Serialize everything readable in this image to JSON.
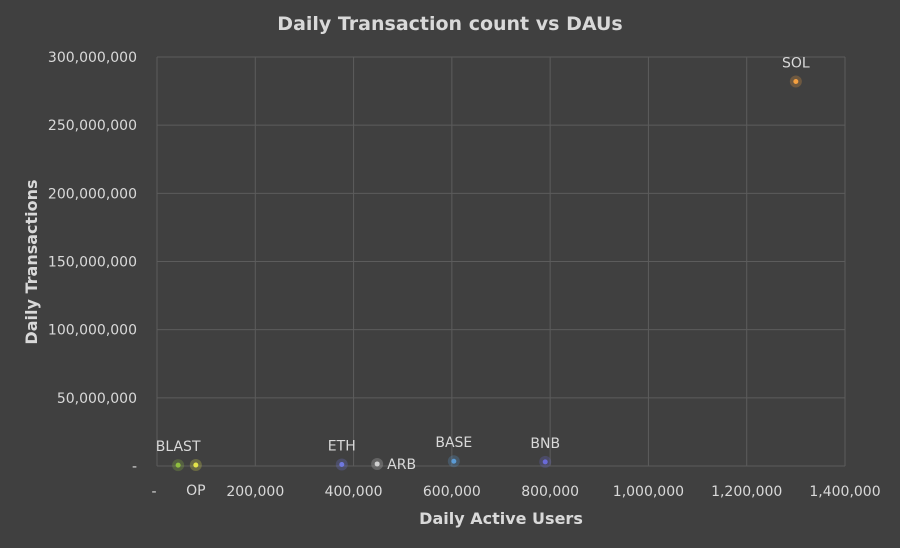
{
  "chart_data": {
    "type": "scatter",
    "title": "Daily Transaction count vs DAUs",
    "xlabel": "Daily Active Users",
    "ylabel": "Daily Transactions",
    "xlim": [
      0,
      1400000
    ],
    "ylim": [
      0,
      300000000
    ],
    "x_ticks": [
      0,
      200000,
      400000,
      600000,
      800000,
      1000000,
      1200000,
      1400000
    ],
    "x_tick_labels": [
      "-",
      "200,000",
      "400,000",
      "600,000",
      "800,000",
      "1,000,000",
      "1,200,000",
      "1,400,000"
    ],
    "y_ticks": [
      0,
      50000000,
      100000000,
      150000000,
      200000000,
      250000000,
      300000000
    ],
    "y_tick_labels": [
      "-",
      "50,000,000",
      "100,000,000",
      "150,000,000",
      "200,000,000",
      "250,000,000",
      "300,000,000"
    ],
    "grid": true,
    "legend": "none",
    "points": [
      {
        "label": "BLAST",
        "x": 43000,
        "y": 600000,
        "color": "#8fbf3f",
        "label_pos": "above-left"
      },
      {
        "label": "OP",
        "x": 79000,
        "y": 700000,
        "color": "#e3e34a",
        "label_pos": "below"
      },
      {
        "label": "ETH",
        "x": 376000,
        "y": 1100000,
        "color": "#6f78e0",
        "label_pos": "above"
      },
      {
        "label": "ARB",
        "x": 448000,
        "y": 1500000,
        "color": "#d0d0d0",
        "label_pos": "right"
      },
      {
        "label": "BASE",
        "x": 604000,
        "y": 3500000,
        "color": "#5b9bd5",
        "label_pos": "above"
      },
      {
        "label": "BNB",
        "x": 790000,
        "y": 3000000,
        "color": "#6a6ad8",
        "label_pos": "above"
      },
      {
        "label": "SOL",
        "x": 1300000,
        "y": 282000000,
        "color": "#f4a040",
        "label_pos": "above"
      }
    ]
  },
  "colors": {
    "background": "#404040",
    "grid": "#5c5c5c",
    "text": "#d9d9d9"
  }
}
